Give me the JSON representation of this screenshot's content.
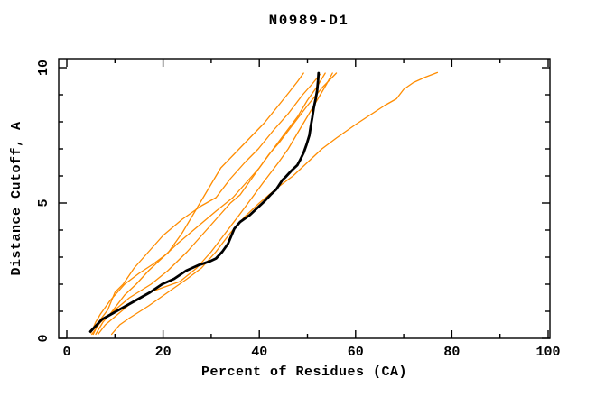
{
  "title": "N0989-D1",
  "colors": {
    "background": "#ffffff",
    "frame": "#000000",
    "orange_series": "#ff8c00",
    "black_series": "#000000",
    "text": "#000000"
  },
  "chart_data": {
    "type": "line",
    "title": "N0989-D1",
    "xlabel": "Percent of Residues (CA)",
    "ylabel": "Distance Cutoff, A",
    "xlim": [
      0,
      100
    ],
    "ylim": [
      0,
      10
    ],
    "x_major_ticks": [
      0,
      20,
      40,
      60,
      80,
      100
    ],
    "x_minor_step": 10,
    "y_major_ticks": [
      0,
      5,
      10
    ],
    "y_minor_step": 1,
    "grid": false,
    "legend_position": "none",
    "series": [
      {
        "name": "orange-1",
        "color": "#ff8c00",
        "width": 1.3,
        "points": [
          [
            5.0,
            0.2
          ],
          [
            6.0,
            0.6
          ],
          [
            7.0,
            0.9
          ],
          [
            9.0,
            1.4
          ],
          [
            12.0,
            2.0
          ],
          [
            15.0,
            2.4
          ],
          [
            18.0,
            2.75
          ],
          [
            21.0,
            3.15
          ],
          [
            24.0,
            3.9
          ],
          [
            27.0,
            4.8
          ],
          [
            30.0,
            5.7
          ],
          [
            32.0,
            6.3
          ],
          [
            35.0,
            6.85
          ],
          [
            38.0,
            7.4
          ],
          [
            41.0,
            7.95
          ],
          [
            43.5,
            8.5
          ],
          [
            46.0,
            9.05
          ],
          [
            48.0,
            9.5
          ],
          [
            49.2,
            9.8
          ]
        ]
      },
      {
        "name": "orange-2",
        "color": "#ff8c00",
        "width": 1.3,
        "points": [
          [
            5.5,
            0.15
          ],
          [
            7.0,
            0.7
          ],
          [
            8.5,
            1.05
          ],
          [
            10.0,
            1.7
          ],
          [
            11.7,
            2.0
          ],
          [
            14.0,
            2.6
          ],
          [
            17.0,
            3.2
          ],
          [
            20.0,
            3.8
          ],
          [
            24.0,
            4.4
          ],
          [
            28.0,
            4.9
          ],
          [
            31.0,
            5.2
          ],
          [
            34.0,
            5.9
          ],
          [
            37.0,
            6.5
          ],
          [
            39.8,
            7.0
          ],
          [
            43.0,
            7.7
          ],
          [
            46.0,
            8.3
          ],
          [
            49.0,
            9.0
          ],
          [
            51.0,
            9.4
          ],
          [
            52.6,
            9.75
          ]
        ]
      },
      {
        "name": "orange-3",
        "color": "#ff8c00",
        "width": 1.3,
        "points": [
          [
            6.0,
            0.15
          ],
          [
            7.5,
            0.6
          ],
          [
            9.0,
            0.9
          ],
          [
            12.0,
            1.6
          ],
          [
            14.4,
            2.0
          ],
          [
            17.0,
            2.5
          ],
          [
            20.0,
            3.0
          ],
          [
            23.0,
            3.5
          ],
          [
            27.0,
            4.1
          ],
          [
            31.0,
            4.7
          ],
          [
            34.5,
            5.2
          ],
          [
            37.0,
            5.7
          ],
          [
            40.0,
            6.3
          ],
          [
            42.9,
            7.0
          ],
          [
            45.0,
            7.5
          ],
          [
            48.0,
            8.2
          ],
          [
            50.0,
            8.8
          ],
          [
            52.0,
            9.3
          ],
          [
            53.7,
            9.8
          ]
        ]
      },
      {
        "name": "orange-4",
        "color": "#ff8c00",
        "width": 1.3,
        "points": [
          [
            6.5,
            0.15
          ],
          [
            8.0,
            0.5
          ],
          [
            10.0,
            0.8
          ],
          [
            14.0,
            1.4
          ],
          [
            18.0,
            1.75
          ],
          [
            23.5,
            2.1
          ],
          [
            27.0,
            2.6
          ],
          [
            30.0,
            3.2
          ],
          [
            33.0,
            3.9
          ],
          [
            36.0,
            4.6
          ],
          [
            38.5,
            5.2
          ],
          [
            41.0,
            5.8
          ],
          [
            44.0,
            6.5
          ],
          [
            46.0,
            7.0
          ],
          [
            48.0,
            7.6
          ],
          [
            50.0,
            8.2
          ],
          [
            52.0,
            8.8
          ],
          [
            54.0,
            9.4
          ],
          [
            55.2,
            9.8
          ]
        ]
      },
      {
        "name": "orange-5",
        "color": "#ff8c00",
        "width": 1.3,
        "points": [
          [
            5.2,
            0.15
          ],
          [
            7.0,
            0.6
          ],
          [
            9.0,
            0.9
          ],
          [
            13.0,
            1.5
          ],
          [
            17.5,
            2.0
          ],
          [
            21.0,
            2.5
          ],
          [
            25.0,
            3.2
          ],
          [
            29.0,
            4.0
          ],
          [
            32.0,
            4.6
          ],
          [
            34.0,
            5.0
          ],
          [
            36.0,
            5.3
          ],
          [
            38.0,
            5.8
          ],
          [
            40.0,
            6.3
          ],
          [
            42.0,
            6.8
          ],
          [
            44.0,
            7.2
          ],
          [
            47.0,
            7.9
          ],
          [
            50.0,
            8.6
          ],
          [
            53.0,
            9.25
          ],
          [
            56.0,
            9.8
          ]
        ]
      },
      {
        "name": "orange-6-outlier",
        "color": "#ff8c00",
        "width": 1.3,
        "points": [
          [
            9.3,
            0.15
          ],
          [
            11.0,
            0.5
          ],
          [
            13.0,
            0.75
          ],
          [
            17.0,
            1.2
          ],
          [
            21.0,
            1.7
          ],
          [
            25.0,
            2.2
          ],
          [
            28.0,
            2.6
          ],
          [
            31.0,
            3.2
          ],
          [
            34.0,
            3.9
          ],
          [
            37.0,
            4.5
          ],
          [
            40.0,
            5.0
          ],
          [
            44.0,
            5.6
          ],
          [
            47.0,
            6.0
          ],
          [
            50.0,
            6.5
          ],
          [
            53.0,
            7.0
          ],
          [
            56.0,
            7.4
          ],
          [
            60.0,
            7.9
          ],
          [
            63.0,
            8.25
          ],
          [
            66.0,
            8.6
          ],
          [
            68.5,
            8.85
          ],
          [
            70.0,
            9.2
          ],
          [
            72.0,
            9.45
          ],
          [
            74.5,
            9.65
          ],
          [
            77.0,
            9.82
          ]
        ]
      },
      {
        "name": "black-main",
        "color": "#000000",
        "width": 2.8,
        "points": [
          [
            4.9,
            0.25
          ],
          [
            6.5,
            0.55
          ],
          [
            7.3,
            0.7
          ],
          [
            9.8,
            0.95
          ],
          [
            12.3,
            1.2
          ],
          [
            14.8,
            1.45
          ],
          [
            17.3,
            1.7
          ],
          [
            19.8,
            2.0
          ],
          [
            22.3,
            2.2
          ],
          [
            24.8,
            2.5
          ],
          [
            27.3,
            2.7
          ],
          [
            29.8,
            2.85
          ],
          [
            31.0,
            2.95
          ],
          [
            32.3,
            3.2
          ],
          [
            33.5,
            3.5
          ],
          [
            34.8,
            4.05
          ],
          [
            36.0,
            4.3
          ],
          [
            38.0,
            4.55
          ],
          [
            39.8,
            4.85
          ],
          [
            41.0,
            5.05
          ],
          [
            42.3,
            5.3
          ],
          [
            43.5,
            5.5
          ],
          [
            44.8,
            5.85
          ],
          [
            45.4,
            5.95
          ],
          [
            46.7,
            6.2
          ],
          [
            47.9,
            6.4
          ],
          [
            48.5,
            6.6
          ],
          [
            49.2,
            6.85
          ],
          [
            49.8,
            7.15
          ],
          [
            50.4,
            7.5
          ],
          [
            50.7,
            7.85
          ],
          [
            51.0,
            8.15
          ],
          [
            51.3,
            8.5
          ],
          [
            51.7,
            8.85
          ],
          [
            52.0,
            9.15
          ],
          [
            52.2,
            9.5
          ],
          [
            52.3,
            9.8
          ]
        ]
      }
    ]
  }
}
